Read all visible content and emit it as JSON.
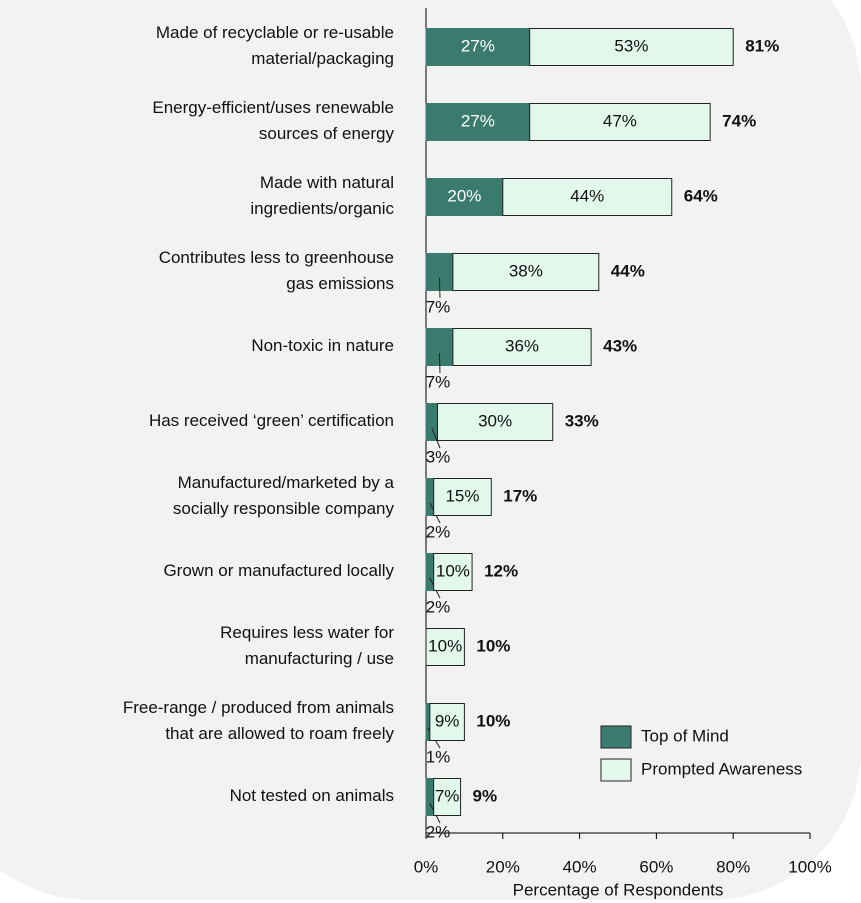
{
  "chart_data": {
    "type": "stacked-bar-horizontal",
    "x_label": "Percentage of Respondents",
    "categories": [
      "Made of recyclable or re-usable\nmaterial/packaging",
      "Energy-efficient/uses renewable\nsources of energy",
      "Made with natural\ningredients/organic",
      "Contributes less to greenhouse\ngas emissions",
      "Non-toxic in nature",
      "Has received ‘green’ certification",
      "Manufactured/marketed by a\nsocially responsible company",
      "Grown or manufactured locally",
      "Requires less water for\nmanufacturing / use",
      "Free-range / produced from animals\nthat are allowed to roam freely",
      "Not tested on animals"
    ],
    "series": [
      {
        "name": "Top of Mind",
        "color": "#3b7b6d",
        "values": [
          27,
          27,
          20,
          7,
          7,
          3,
          2,
          2,
          0,
          1,
          2
        ],
        "value_labels": [
          "27%",
          "27%",
          "20%",
          "7%",
          "7%",
          "3%",
          "2%",
          "2%",
          null,
          "1%",
          "2%"
        ]
      },
      {
        "name": "Prompted Awareness",
        "color": "#e3f8ec",
        "values": [
          53,
          47,
          44,
          38,
          36,
          30,
          15,
          10,
          10,
          9,
          7
        ],
        "value_labels": [
          "53%",
          "47%",
          "44%",
          "38%",
          "36%",
          "30%",
          "15%",
          "10%",
          "10%",
          "9%",
          "7%"
        ]
      }
    ],
    "totals": [
      81,
      74,
      64,
      44,
      43,
      33,
      17,
      12,
      10,
      10,
      9
    ],
    "total_labels": [
      "81%",
      "74%",
      "64%",
      "44%",
      "43%",
      "33%",
      "17%",
      "12%",
      "10%",
      "10%",
      "9%"
    ],
    "xlim": [
      0,
      100
    ],
    "xticks": [
      {
        "value": 0,
        "label": "0%"
      },
      {
        "value": 20,
        "label": "20%"
      },
      {
        "value": 40,
        "label": "40%"
      },
      {
        "value": 60,
        "label": "60%"
      },
      {
        "value": 80,
        "label": "80%"
      },
      {
        "value": 100,
        "label": "100%"
      }
    ],
    "legend": "bottom-right"
  }
}
